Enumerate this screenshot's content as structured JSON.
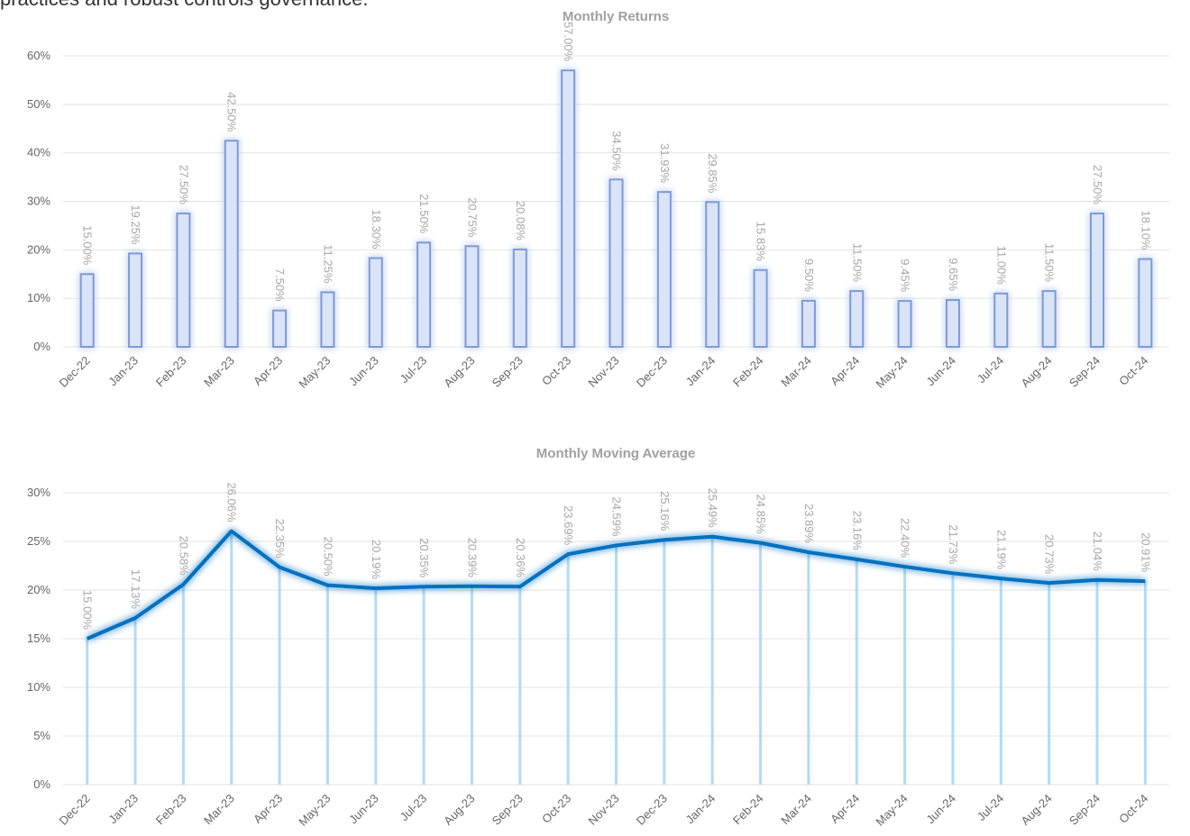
{
  "header_text": "practices and robust controls governance.",
  "chart_data": [
    {
      "type": "bar",
      "title": "Monthly Returns",
      "categories": [
        "Dec-22",
        "Jan-23",
        "Feb-23",
        "Mar-23",
        "Apr-23",
        "May-23",
        "Jun-23",
        "Jul-23",
        "Aug-23",
        "Sep-23",
        "Oct-23",
        "Nov-23",
        "Dec-23",
        "Jan-24",
        "Feb-24",
        "Mar-24",
        "Apr-24",
        "May-24",
        "Jun-24",
        "Jul-24",
        "Aug-24",
        "Sep-24",
        "Oct-24"
      ],
      "values": [
        15.0,
        19.25,
        27.5,
        42.5,
        7.5,
        11.25,
        18.3,
        21.5,
        20.75,
        20.08,
        57.0,
        34.5,
        31.93,
        29.85,
        15.83,
        9.5,
        11.5,
        9.45,
        9.65,
        11.0,
        11.5,
        27.5,
        18.1
      ],
      "value_labels": [
        "15.00%",
        "19.25%",
        "27.50%",
        "42.50%",
        "7.50%",
        "11.25%",
        "18.30%",
        "21.50%",
        "20.75%",
        "20.08%",
        "57.00%",
        "34.50%",
        "31.93%",
        "29.85%",
        "15.83%",
        "9.50%",
        "11.50%",
        "9.45%",
        "9.65%",
        "11.00%",
        "11.50%",
        "27.50%",
        "18.10%"
      ],
      "color": "#7b9bd9",
      "ylim": [
        0,
        60
      ],
      "yticks": [
        {
          "value": 0,
          "label": "0%"
        },
        {
          "value": 10,
          "label": "10%"
        },
        {
          "value": 20,
          "label": "20%"
        },
        {
          "value": 30,
          "label": "30%"
        },
        {
          "value": 40,
          "label": "40%"
        },
        {
          "value": 50,
          "label": "50%"
        },
        {
          "value": 60,
          "label": "60%"
        }
      ],
      "grid": true
    },
    {
      "type": "line",
      "title": "Monthly Moving Average",
      "categories": [
        "Dec-22",
        "Jan-23",
        "Feb-23",
        "Mar-23",
        "Apr-23",
        "May-23",
        "Jun-23",
        "Jul-23",
        "Aug-23",
        "Sep-23",
        "Oct-23",
        "Nov-23",
        "Dec-23",
        "Jan-24",
        "Feb-24",
        "Mar-24",
        "Apr-24",
        "May-24",
        "Jun-24",
        "Jul-24",
        "Aug-24",
        "Sep-24",
        "Oct-24"
      ],
      "values": [
        15.0,
        17.13,
        20.58,
        26.06,
        22.35,
        20.5,
        20.19,
        20.35,
        20.39,
        20.36,
        23.69,
        24.59,
        25.16,
        25.49,
        24.85,
        23.89,
        23.16,
        22.4,
        21.73,
        21.19,
        20.73,
        21.04,
        20.91
      ],
      "value_labels": [
        "15.00%",
        "17.13%",
        "20.58%",
        "26.06%",
        "22.35%",
        "20.50%",
        "20.19%",
        "20.35%",
        "20.39%",
        "20.36%",
        "23.69%",
        "24.59%",
        "25.16%",
        "25.49%",
        "24.85%",
        "23.89%",
        "23.16%",
        "22.40%",
        "21.73%",
        "21.19%",
        "20.73%",
        "21.04%",
        "20.91%"
      ],
      "color": "#0070c0",
      "ylim": [
        0,
        30
      ],
      "yticks": [
        {
          "value": 0,
          "label": "0%"
        },
        {
          "value": 5,
          "label": "5%"
        },
        {
          "value": 10,
          "label": "10%"
        },
        {
          "value": 15,
          "label": "15%"
        },
        {
          "value": 20,
          "label": "20%"
        },
        {
          "value": 25,
          "label": "25%"
        },
        {
          "value": 30,
          "label": "30%"
        }
      ],
      "grid": true
    }
  ]
}
